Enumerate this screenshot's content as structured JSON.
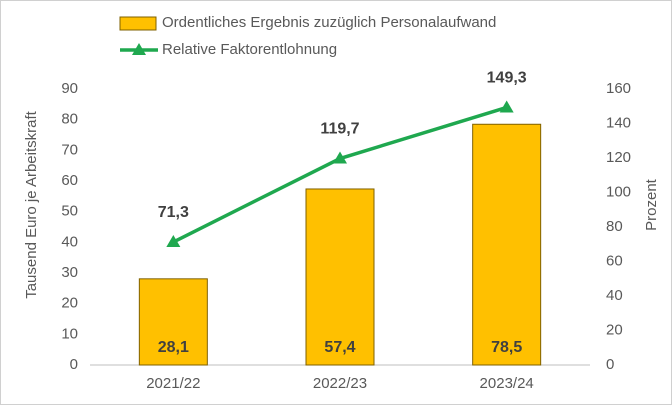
{
  "chart_data": {
    "type": "bar",
    "categories": [
      "2021/22",
      "2022/23",
      "2023/24"
    ],
    "series": [
      {
        "name": "Ordentliches Ergebnis zuzüglich Personalaufwand",
        "type": "bar",
        "color": "#ffc000",
        "values": [
          28.1,
          57.4,
          78.5
        ],
        "value_labels": [
          "28,1",
          "57,4",
          "78,5"
        ]
      },
      {
        "name": "Relative Faktorentlohnung",
        "type": "line",
        "axis": "y2",
        "color": "#1fa84f",
        "values": [
          71.3,
          119.7,
          149.3
        ],
        "value_labels": [
          "71,3",
          "119,7",
          "149,3"
        ]
      }
    ],
    "ylabel": "Tausend Euro je Arbeitskraft",
    "y2label": "Prozent",
    "ylim": [
      0,
      90
    ],
    "yticks": [
      0,
      10,
      20,
      30,
      40,
      50,
      60,
      70,
      80,
      90
    ],
    "y2lim": [
      0,
      160
    ],
    "y2ticks": [
      0,
      20,
      40,
      60,
      80,
      100,
      120,
      140,
      160
    ],
    "grid": false,
    "legend": "top"
  }
}
